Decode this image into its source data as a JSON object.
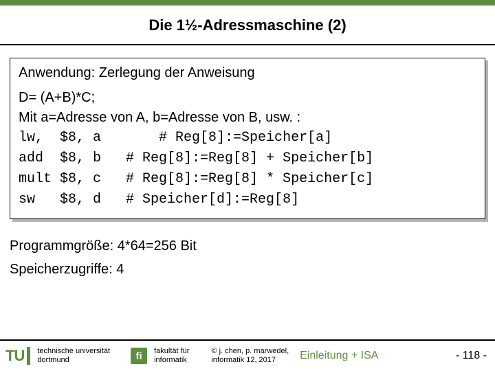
{
  "colors": {
    "accent": "#5e8e3f",
    "shadow": "#b5b5b5",
    "text": "#000000",
    "bg": "#ffffff"
  },
  "title": {
    "text": "Die 1½-Adressmaschine (2)",
    "fontsize": 22
  },
  "box": {
    "heading": "Anwendung: Zerlegung der Anweisung",
    "line1": "D= (A+B)*C;",
    "line2": "Mit a=Adresse von A, b=Adresse von B, usw. :",
    "code": "lw,  $8, a       # Reg[8]:=Speicher[a]\nadd  $8, b   # Reg[8]:=Reg[8] + Speicher[b]\nmult $8, c   # Reg[8]:=Reg[8] * Speicher[c]\nsw   $8, d   # Speicher[d]:=Reg[8]",
    "fontsize": 20
  },
  "summary": {
    "line1": "Programmgröße: 4*64=256 Bit",
    "line2": "Speicherzugriffe: 4",
    "fontsize": 20
  },
  "footer": {
    "tu_mark": "TU",
    "university_l1": "technische universität",
    "university_l2": "dortmund",
    "fi_mark": "fi",
    "faculty_l1": "fakultät für",
    "faculty_l2": "informatik",
    "copyright_l1": "© j. chen, p. marwedel,",
    "copyright_l2": "informatik 12,  2017",
    "chapter": "Einleitung + ISA",
    "page": "-  118 -",
    "small_fontsize": 11,
    "chapter_fontsize": 16,
    "page_fontsize": 16
  }
}
